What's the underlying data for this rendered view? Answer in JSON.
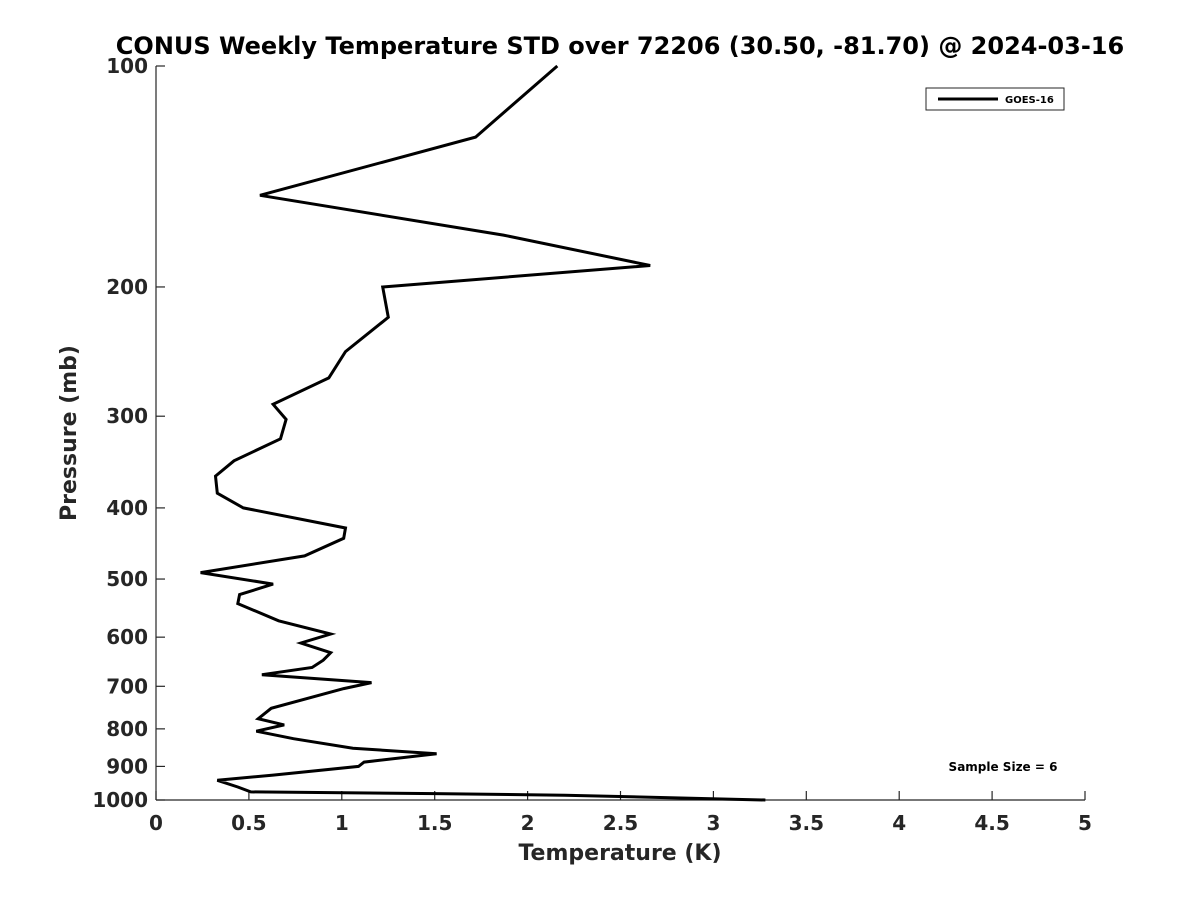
{
  "chart_data": {
    "type": "line",
    "title": "CONUS Weekly Temperature STD over 72206 (30.50, -81.70) @ 2024-03-16",
    "xlabel": "Temperature (K)",
    "ylabel": "Pressure (mb)",
    "xlim": [
      0,
      5
    ],
    "ylim": [
      100,
      1000
    ],
    "yscale": "log",
    "y_reversed": true,
    "xticks": [
      0,
      0.5,
      1,
      1.5,
      2,
      2.5,
      3,
      3.5,
      4,
      4.5,
      5
    ],
    "xtick_labels": [
      "0",
      "0.5",
      "1",
      "1.5",
      "2",
      "2.5",
      "3",
      "3.5",
      "4",
      "4.5",
      "5"
    ],
    "yticks": [
      100,
      200,
      300,
      400,
      500,
      600,
      700,
      800,
      900,
      1000
    ],
    "ytick_labels": [
      "100",
      "200",
      "300",
      "400",
      "500",
      "600",
      "700",
      "800",
      "900",
      "1000"
    ],
    "grid": false,
    "legend_position": "top-right",
    "annotation": "Sample Size = 6",
    "line_color": "#000000",
    "series": [
      {
        "name": "GOES-16",
        "points": [
          [
            2.16,
            100
          ],
          [
            1.72,
            125
          ],
          [
            0.56,
            150
          ],
          [
            1.87,
            170
          ],
          [
            2.66,
            187
          ],
          [
            1.22,
            200
          ],
          [
            1.25,
            220
          ],
          [
            1.02,
            245
          ],
          [
            0.93,
            266
          ],
          [
            0.63,
            289
          ],
          [
            0.7,
            303
          ],
          [
            0.67,
            322
          ],
          [
            0.42,
            345
          ],
          [
            0.32,
            362
          ],
          [
            0.33,
            382
          ],
          [
            0.47,
            400
          ],
          [
            1.02,
            426
          ],
          [
            1.01,
            440
          ],
          [
            0.8,
            465
          ],
          [
            0.24,
            490
          ],
          [
            0.63,
            508
          ],
          [
            0.45,
            525
          ],
          [
            0.44,
            540
          ],
          [
            0.66,
            570
          ],
          [
            0.94,
            594
          ],
          [
            0.78,
            611
          ],
          [
            0.94,
            630
          ],
          [
            0.9,
            645
          ],
          [
            0.84,
            660
          ],
          [
            0.57,
            675
          ],
          [
            1.16,
            692
          ],
          [
            1.01,
            705
          ],
          [
            0.62,
            750
          ],
          [
            0.55,
            775
          ],
          [
            0.69,
            790
          ],
          [
            0.54,
            806
          ],
          [
            0.74,
            825
          ],
          [
            1.06,
            850
          ],
          [
            1.51,
            865
          ],
          [
            1.12,
            888
          ],
          [
            1.09,
            900
          ],
          [
            0.63,
            925
          ],
          [
            0.33,
            940
          ],
          [
            0.44,
            960
          ],
          [
            0.51,
            975
          ],
          [
            1.5,
            980
          ],
          [
            2.2,
            985
          ],
          [
            3.28,
            1000
          ]
        ]
      }
    ]
  }
}
